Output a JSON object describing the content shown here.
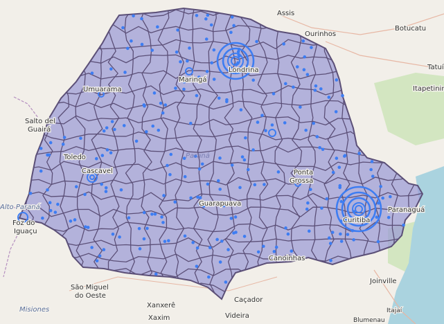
{
  "map": {
    "colors": {
      "land": "#f2efe9",
      "forest": "#d3e6c1",
      "water": "#aad3df",
      "region_fill": "#9a9ad6",
      "region_border": "#5b4f77",
      "marker": "#3d7df2",
      "road": "#e7b7a4",
      "boundary": "#b58fbf"
    },
    "region_name": "Paraná",
    "labels": {
      "assis": "Assis",
      "ourinhos": "Ourinhos",
      "botucatu": "Botucatu",
      "tatui": "Tatuí",
      "itapetininga": "Itapetininga",
      "umuarama": "Umuarama",
      "londrina": "Londrina",
      "maringa": "Maringá",
      "salto_guaira": "Salto del\nGuairá",
      "toledo": "Toledo",
      "cascavel": "Cascavel",
      "parana_state": "Paraná",
      "ponta_grossa": "Ponta\nGrossa",
      "guarapuava": "Guarapuava",
      "alto_parana": "Alto Paraná",
      "foz": "Foz do\nIguaçu",
      "curitiba": "Curitiba",
      "paranagua": "Paranaguá",
      "canoinhas": "Canoinhas",
      "joinville": "Joinville",
      "sao_miguel": "São Miguel\ndo Oeste",
      "cacador": "Caçador",
      "xanxere": "Xanxerê",
      "xaxim": "Xaxim",
      "videira": "Videira",
      "misiones": "Misiones",
      "itajai": "Itajaí",
      "blumenau": "Blumenau"
    },
    "big_clusters": [
      {
        "name": "Londrina",
        "rings": 4
      },
      {
        "name": "Curitiba",
        "rings": 5
      }
    ]
  }
}
